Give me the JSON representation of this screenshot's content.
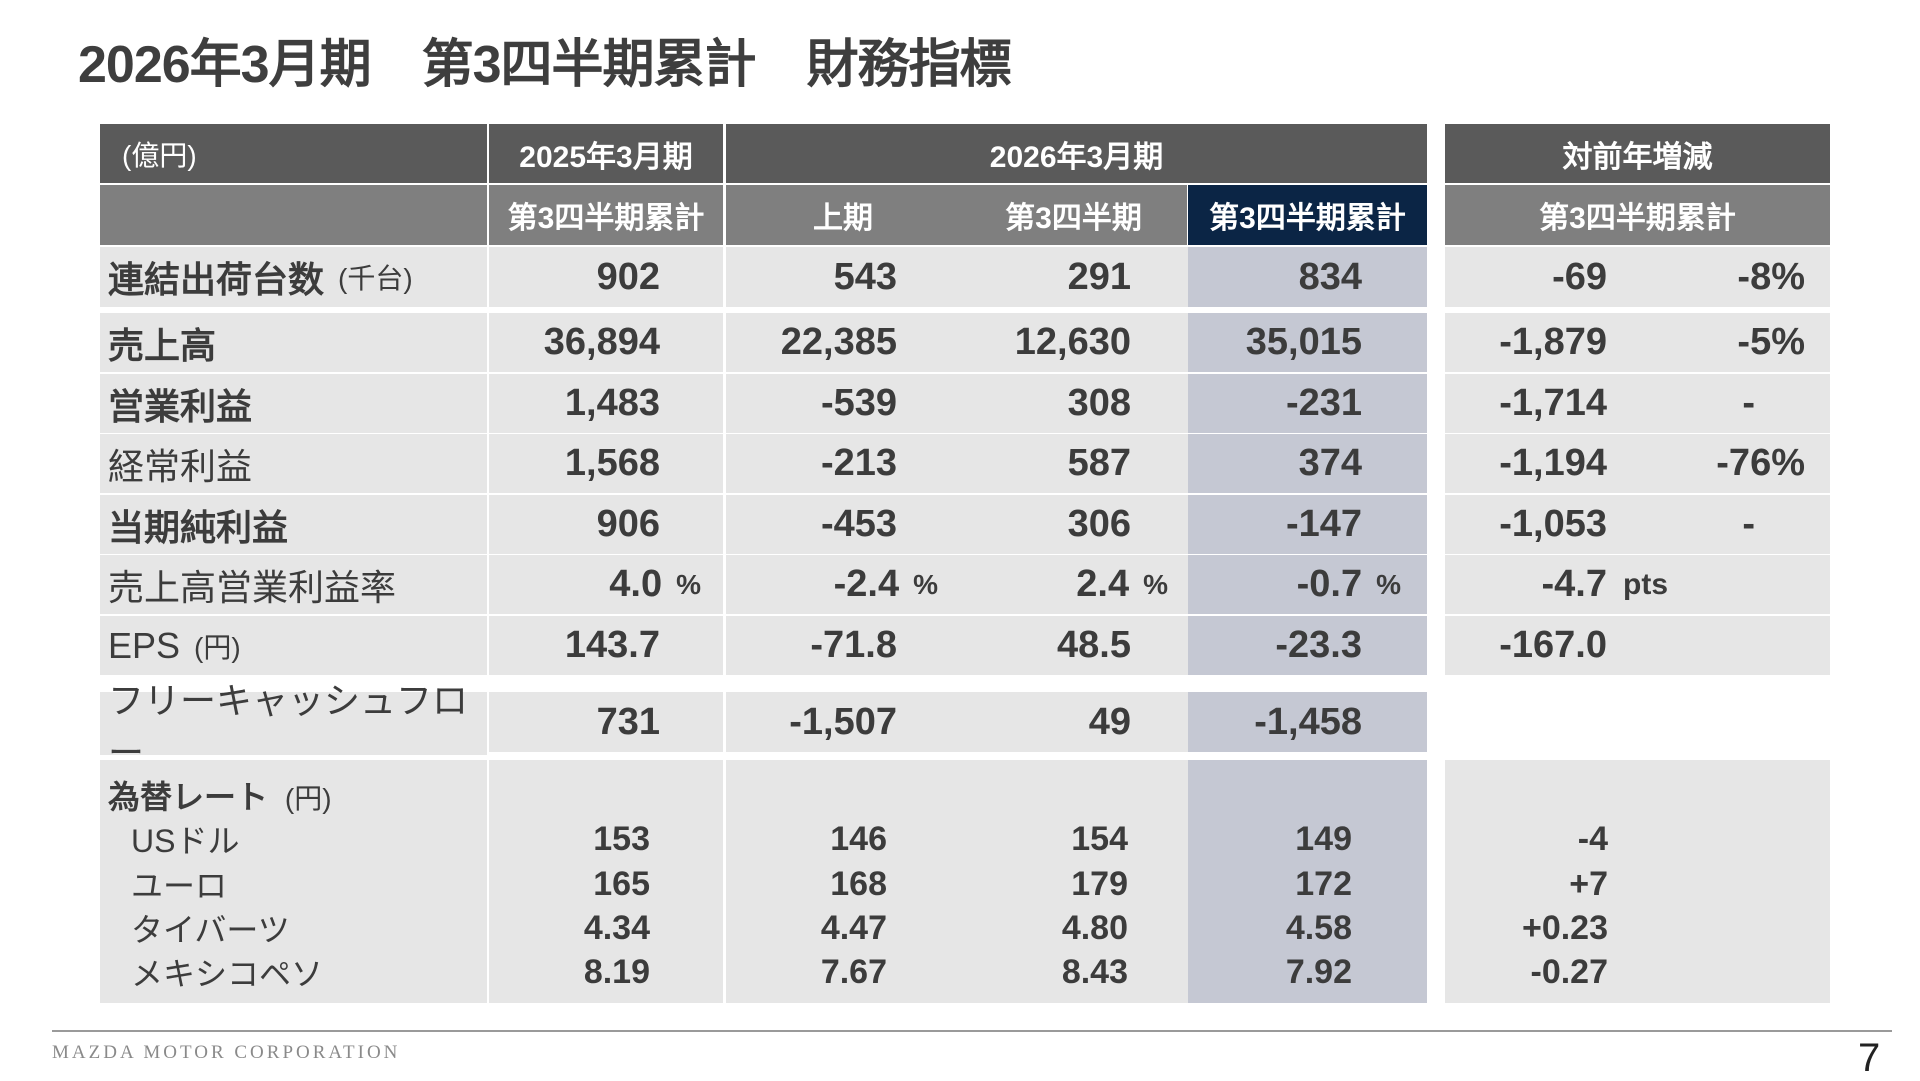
{
  "title": "2026年3月期　第3四半期累計　財務指標",
  "header": {
    "unit": "(億円)",
    "fy2025": "2025年3月期",
    "fy2026": "2026年3月期",
    "yoy": "対前年増減",
    "sub_fy2025_cum": "第3四半期累計",
    "sub_h1": "上期",
    "sub_q3": "第3四半期",
    "sub_fy2026_cum": "第3四半期累計",
    "sub_yoy_cum": "第3四半期累計"
  },
  "rows": [
    {
      "label": "連結出荷台数",
      "unit": "(千台)",
      "fy25": "902",
      "h1": "543",
      "q3": "291",
      "cum": "834",
      "diff": "-69",
      "diff_pct": "-8%"
    },
    {
      "label": "売上高",
      "unit": "",
      "fy25": "36,894",
      "h1": "22,385",
      "q3": "12,630",
      "cum": "35,015",
      "diff": "-1,879",
      "diff_pct": "-5%"
    },
    {
      "label": "営業利益",
      "unit": "",
      "fy25": "1,483",
      "h1": "-539",
      "q3": "308",
      "cum": "-231",
      "diff": "-1,714",
      "diff_pct": "-"
    },
    {
      "label": "経常利益",
      "unit": "",
      "fy25": "1,568",
      "h1": "-213",
      "q3": "587",
      "cum": "374",
      "diff": "-1,194",
      "diff_pct": "-76%"
    },
    {
      "label": "当期純利益",
      "unit": "",
      "fy25": "906",
      "h1": "-453",
      "q3": "306",
      "cum": "-147",
      "diff": "-1,053",
      "diff_pct": "-"
    },
    {
      "label": "売上高営業利益率",
      "unit": "",
      "fy25": "4.0",
      "h1": "-2.4",
      "q3": "2.4",
      "cum": "-0.7",
      "diff": "-4.7",
      "diff_pct": "",
      "suffix": "%",
      "diff_suffix": "pts"
    },
    {
      "label": "EPS",
      "unit": "(円)",
      "fy25": "143.7",
      "h1": "-71.8",
      "q3": "48.5",
      "cum": "-23.3",
      "diff": "-167.0",
      "diff_pct": ""
    },
    {
      "label": "フリーキャッシュフロー",
      "unit": "",
      "fy25": "731",
      "h1": "-1,507",
      "q3": "49",
      "cum": "-1,458",
      "diff": "",
      "diff_pct": ""
    }
  ],
  "fx": {
    "label": "為替レート",
    "unit": "(円)",
    "items": [
      {
        "name": "USドル",
        "fy25": "153",
        "h1": "146",
        "q3": "154",
        "cum": "149",
        "diff": "-4"
      },
      {
        "name": "ユーロ",
        "fy25": "165",
        "h1": "168",
        "q3": "179",
        "cum": "172",
        "diff": "+7"
      },
      {
        "name": "タイバーツ",
        "fy25": "4.34",
        "h1": "4.47",
        "q3": "4.80",
        "cum": "4.58",
        "diff": "+0.23"
      },
      {
        "name": "メキシコペソ",
        "fy25": "8.19",
        "h1": "7.67",
        "q3": "8.43",
        "cum": "7.92",
        "diff": "-0.27"
      }
    ]
  },
  "footer": {
    "company": "MAZDA MOTOR CORPORATION",
    "page": "7"
  },
  "colors": {
    "header_dark": "#5a5a5a",
    "header_mid": "#7f7f7f",
    "highlight_header": "#0b2545",
    "highlight_cell": "#c5c8d3",
    "cell_bg": "#e6e6e6"
  }
}
